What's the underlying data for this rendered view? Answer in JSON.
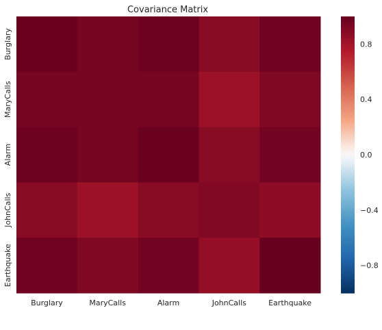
{
  "chart_data": {
    "type": "heatmap",
    "title": "Covariance Matrix",
    "x_categories": [
      "Burglary",
      "MaryCalls",
      "Alarm",
      "JohnCalls",
      "Earthquake"
    ],
    "y_categories": [
      "Burglary",
      "MaryCalls",
      "Alarm",
      "JohnCalls",
      "Earthquake"
    ],
    "values": [
      [
        0.99,
        0.95,
        0.98,
        0.89,
        0.97
      ],
      [
        0.95,
        0.95,
        0.95,
        0.82,
        0.92
      ],
      [
        0.98,
        0.95,
        0.99,
        0.89,
        0.96
      ],
      [
        0.89,
        0.82,
        0.89,
        0.91,
        0.87
      ],
      [
        0.97,
        0.92,
        0.96,
        0.85,
        1.0
      ]
    ],
    "colorbar": {
      "range": [
        -1.0,
        1.0
      ],
      "ticks": [
        -0.8,
        -0.4,
        0.0,
        0.4,
        0.8
      ],
      "tick_labels": [
        "−0.8",
        "−0.4",
        "0.0",
        "0.4",
        "0.8"
      ],
      "colormap": "RdBu_r"
    }
  }
}
